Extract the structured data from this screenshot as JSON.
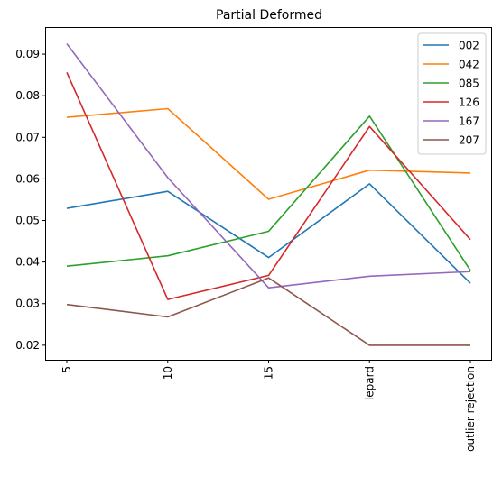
{
  "chart_data": {
    "type": "line",
    "title": "Partial Deformed",
    "xlabel": "",
    "ylabel": "",
    "categories": [
      "5",
      "10",
      "15",
      "lepard",
      "outlier rejection"
    ],
    "ylim": [
      0.0165,
      0.0963
    ],
    "yticks": [
      "0.02",
      "0.03",
      "0.04",
      "0.05",
      "0.06",
      "0.07",
      "0.08",
      "0.09"
    ],
    "grid": false,
    "legend_position": "top-right",
    "series": [
      {
        "name": "002",
        "color": "#1f77b4",
        "values": [
          0.0529,
          0.057,
          0.0411,
          0.0588,
          0.0349
        ]
      },
      {
        "name": "042",
        "color": "#ff7f0e",
        "values": [
          0.0748,
          0.0769,
          0.0551,
          0.0621,
          0.0614
        ]
      },
      {
        "name": "085",
        "color": "#2ca02c",
        "values": [
          0.039,
          0.0415,
          0.0474,
          0.0751,
          0.038
        ]
      },
      {
        "name": "126",
        "color": "#d62728",
        "values": [
          0.0856,
          0.031,
          0.0368,
          0.0726,
          0.0454
        ]
      },
      {
        "name": "167",
        "color": "#9467bd",
        "values": [
          0.0925,
          0.0603,
          0.0338,
          0.0366,
          0.0377
        ]
      },
      {
        "name": "207",
        "color": "#8c564b",
        "values": [
          0.0298,
          0.0268,
          0.0362,
          0.02,
          0.02
        ]
      }
    ]
  }
}
